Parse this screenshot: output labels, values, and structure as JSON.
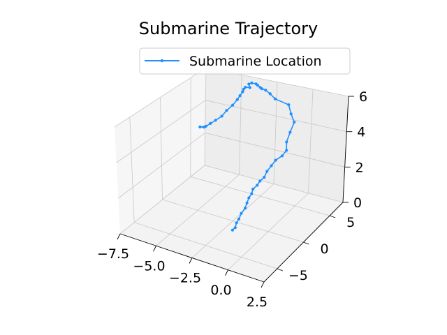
{
  "chart_data": {
    "type": "line",
    "title": "Submarine Trajectory",
    "projection": "3d",
    "xlim": [
      -7.5,
      2.5
    ],
    "ylim": [
      -7.5,
      7.5
    ],
    "zlim": [
      0,
      6
    ],
    "x_ticks": [
      "−7.5",
      "−5.0",
      "−2.5",
      "0.0",
      "2.5"
    ],
    "y_ticks": [
      "−5",
      "0",
      "5"
    ],
    "z_ticks": [
      "0",
      "2",
      "4",
      "6"
    ],
    "grid": true,
    "legend": {
      "position": "top-center"
    },
    "series": [
      {
        "name": "Submarine Location",
        "color": "#1f8fff",
        "marker": "dot",
        "points": [
          {
            "x": -7.5,
            "y": 7.3,
            "z": 2.4
          },
          {
            "x": -7.5,
            "y": 6.6,
            "z": 2.6
          },
          {
            "x": -7.0,
            "y": 6.4,
            "z": 2.8
          },
          {
            "x": -6.6,
            "y": 6.2,
            "z": 3.1
          },
          {
            "x": -6.2,
            "y": 6.1,
            "z": 3.4
          },
          {
            "x": -5.8,
            "y": 6.2,
            "z": 3.7
          },
          {
            "x": -5.6,
            "y": 6.5,
            "z": 4.0
          },
          {
            "x": -5.3,
            "y": 6.8,
            "z": 4.3
          },
          {
            "x": -5.1,
            "y": 7.1,
            "z": 4.6
          },
          {
            "x": -5.0,
            "y": 7.3,
            "z": 4.8
          },
          {
            "x": -4.9,
            "y": 7.5,
            "z": 5.0
          },
          {
            "x": -4.8,
            "y": 7.4,
            "z": 5.2
          },
          {
            "x": -4.6,
            "y": 7.2,
            "z": 5.4
          },
          {
            "x": -4.2,
            "y": 7.0,
            "z": 5.5
          },
          {
            "x": -4.4,
            "y": 7.3,
            "z": 5.6
          },
          {
            "x": -4.2,
            "y": 7.3,
            "z": 5.7
          },
          {
            "x": -3.9,
            "y": 7.3,
            "z": 5.7
          },
          {
            "x": -3.7,
            "y": 7.1,
            "z": 5.7
          },
          {
            "x": -3.4,
            "y": 6.8,
            "z": 5.7
          },
          {
            "x": -3.2,
            "y": 6.6,
            "z": 5.7
          },
          {
            "x": -2.9,
            "y": 6.5,
            "z": 5.7
          },
          {
            "x": -2.5,
            "y": 6.3,
            "z": 5.6
          },
          {
            "x": -2.1,
            "y": 6.2,
            "z": 5.4
          },
          {
            "x": -1.3,
            "y": 6.6,
            "z": 5.1
          },
          {
            "x": -1.0,
            "y": 6.3,
            "z": 4.7
          },
          {
            "x": -0.6,
            "y": 5.9,
            "z": 4.4
          },
          {
            "x": -0.6,
            "y": 5.2,
            "z": 4.0
          },
          {
            "x": -0.6,
            "y": 4.6,
            "z": 3.6
          },
          {
            "x": -0.4,
            "y": 4.1,
            "z": 3.3
          },
          {
            "x": -0.5,
            "y": 3.6,
            "z": 3.1
          },
          {
            "x": -0.8,
            "y": 3.2,
            "z": 2.9
          },
          {
            "x": -0.9,
            "y": 2.7,
            "z": 2.7
          },
          {
            "x": -1.0,
            "y": 2.2,
            "z": 2.5
          },
          {
            "x": -1.0,
            "y": 1.7,
            "z": 2.3
          },
          {
            "x": -1.1,
            "y": 1.2,
            "z": 2.2
          },
          {
            "x": -1.1,
            "y": 0.7,
            "z": 2.1
          },
          {
            "x": -1.2,
            "y": 0.2,
            "z": 2.0
          },
          {
            "x": -1.1,
            "y": -0.3,
            "z": 1.9
          },
          {
            "x": -1.1,
            "y": -0.8,
            "z": 1.8
          },
          {
            "x": -1.0,
            "y": -1.4,
            "z": 1.7
          },
          {
            "x": -0.9,
            "y": -2.0,
            "z": 1.6
          },
          {
            "x": -0.9,
            "y": -2.7,
            "z": 1.5
          },
          {
            "x": -0.8,
            "y": -3.4,
            "z": 1.4
          },
          {
            "x": -0.7,
            "y": -4.1,
            "z": 1.4
          },
          {
            "x": -0.6,
            "y": -4.6,
            "z": 1.3
          },
          {
            "x": -0.6,
            "y": -5.1,
            "z": 1.3
          }
        ]
      }
    ]
  }
}
